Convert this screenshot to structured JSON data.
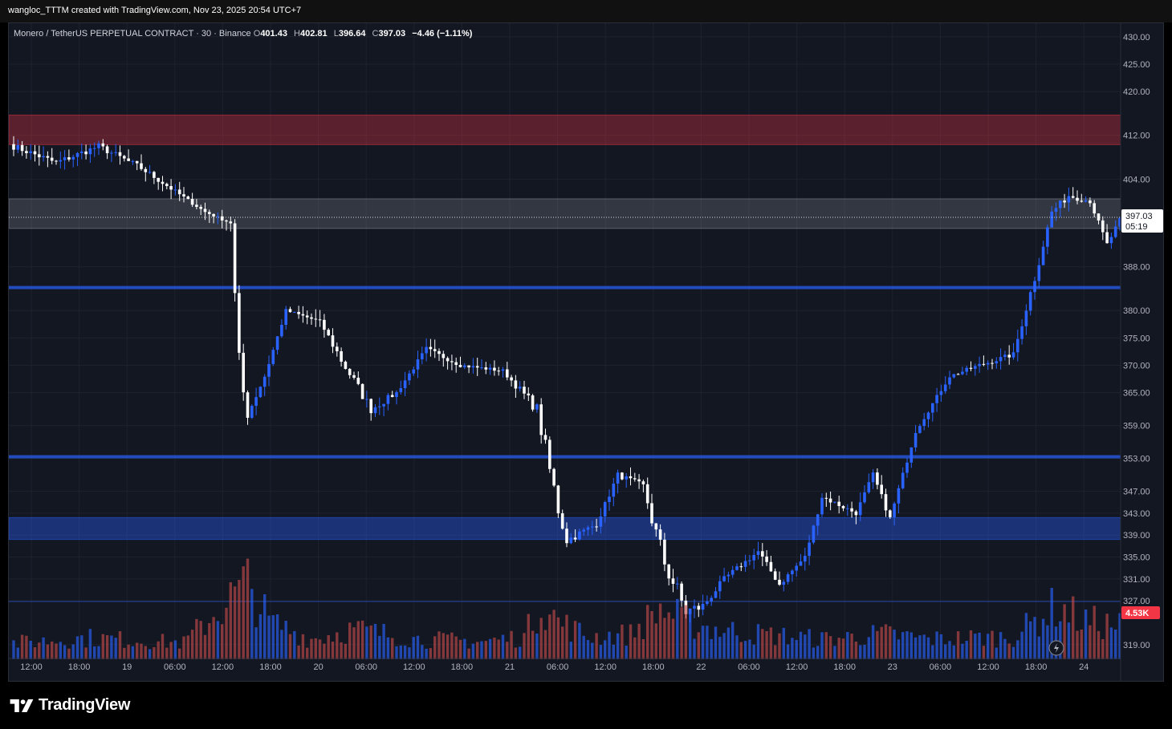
{
  "caption": "wangloc_TTTM created with TradingView.com, Nov 23, 2025 20:54 UTC+7",
  "legend": {
    "symbol": "Monero / TetherUS PERPETUAL CONTRACT · 30 · Binance",
    "o_label": "O",
    "o": "401.43",
    "h_label": "H",
    "h": "402.81",
    "l_label": "L",
    "l": "396.64",
    "c_label": "C",
    "c": "397.03",
    "change": "−4.46 (−1.11%)"
  },
  "price_tag": {
    "price": "397.03",
    "countdown": "05:19"
  },
  "volume_tag": "4.53K",
  "brand": "TradingView",
  "colors": {
    "background": "#131722",
    "up": "#2962ff",
    "down": "#ffffff",
    "volume_up": "#2962ff",
    "volume_down": "#c34a4a",
    "resistance_zone": "#f23645",
    "support_line": "#2962ff",
    "neutral_zone": "#9598a1"
  },
  "chart_data": {
    "type": "candlestick",
    "timeframe": "30",
    "y_axis_ticks": [
      430,
      425,
      420,
      412,
      404,
      397.03,
      388,
      380,
      375,
      370,
      365,
      359,
      353,
      347,
      343,
      339,
      335,
      331,
      327,
      319
    ],
    "y_range": [
      317.5,
      431
    ],
    "x_axis_ticks": [
      "12:00",
      "18:00",
      "19",
      "06:00",
      "12:00",
      "18:00",
      "20",
      "06:00",
      "12:00",
      "18:00",
      "21",
      "06:00",
      "12:00",
      "18:00",
      "22",
      "06:00",
      "12:00",
      "18:00",
      "23",
      "06:00",
      "12:00",
      "18:00",
      "24"
    ],
    "zones": [
      {
        "kind": "resistance",
        "from": 410.3,
        "to": 415.7
      },
      {
        "kind": "range",
        "from": 395,
        "to": 400.4
      },
      {
        "kind": "support",
        "from": 338.2,
        "to": 342.2
      }
    ],
    "lines": [
      384.2,
      353.3
    ],
    "current_price": 397.03,
    "anchors": [
      [
        0,
        410,
        0.05
      ],
      [
        10,
        407,
        0.05
      ],
      [
        20,
        410,
        0.05
      ],
      [
        30,
        406,
        0.05
      ],
      [
        45,
        398,
        0.02
      ],
      [
        51,
        396,
        0.02
      ],
      [
        53,
        369,
        0.35
      ],
      [
        55,
        361,
        0.08
      ],
      [
        59,
        368,
        0.05
      ],
      [
        64,
        380,
        0.03
      ],
      [
        72,
        378,
        0.03
      ],
      [
        77,
        371,
        0.1
      ],
      [
        84,
        362,
        0.08
      ],
      [
        90,
        365,
        0.04
      ],
      [
        97,
        373,
        0.04
      ],
      [
        105,
        370,
        0.03
      ],
      [
        115,
        369,
        0.03
      ],
      [
        123,
        362,
        0.1
      ],
      [
        127,
        347,
        0.28
      ],
      [
        130,
        338,
        0.08
      ],
      [
        137,
        341,
        0.05
      ],
      [
        142,
        350,
        0.05
      ],
      [
        148,
        348,
        0.05
      ],
      [
        152,
        336,
        0.28
      ],
      [
        158,
        325,
        0.15
      ],
      [
        162,
        326,
        0.1
      ],
      [
        167,
        331,
        0.05
      ],
      [
        175,
        336,
        0.05
      ],
      [
        180,
        330,
        0.06
      ],
      [
        186,
        335,
        0.04
      ],
      [
        190,
        346,
        0.05
      ],
      [
        198,
        343,
        0.04
      ],
      [
        202,
        350,
        0.05
      ],
      [
        206,
        342,
        0.05
      ],
      [
        212,
        358,
        0.04
      ],
      [
        220,
        368,
        0.03
      ],
      [
        227,
        370,
        0.04
      ],
      [
        235,
        372,
        0.04
      ],
      [
        240,
        386,
        0.08
      ],
      [
        244,
        398,
        0.05
      ],
      [
        248,
        401,
        0.05
      ],
      [
        253,
        400,
        0.04
      ],
      [
        257,
        392,
        0.05
      ],
      [
        261,
        398,
        0.03
      ]
    ],
    "volume_levels": [
      [
        0,
        0.13
      ],
      [
        18,
        0.17
      ],
      [
        40,
        0.13
      ],
      [
        50,
        0.45
      ],
      [
        55,
        0.6
      ],
      [
        60,
        0.3
      ],
      [
        70,
        0.16
      ],
      [
        80,
        0.24
      ],
      [
        95,
        0.16
      ],
      [
        110,
        0.14
      ],
      [
        120,
        0.18
      ],
      [
        124,
        0.45
      ],
      [
        128,
        0.3
      ],
      [
        135,
        0.18
      ],
      [
        145,
        0.2
      ],
      [
        152,
        0.4
      ],
      [
        158,
        0.3
      ],
      [
        165,
        0.24
      ],
      [
        175,
        0.2
      ],
      [
        190,
        0.16
      ],
      [
        205,
        0.2
      ],
      [
        215,
        0.16
      ],
      [
        235,
        0.18
      ],
      [
        245,
        0.42
      ],
      [
        252,
        0.3
      ],
      [
        261,
        0.26
      ]
    ]
  }
}
